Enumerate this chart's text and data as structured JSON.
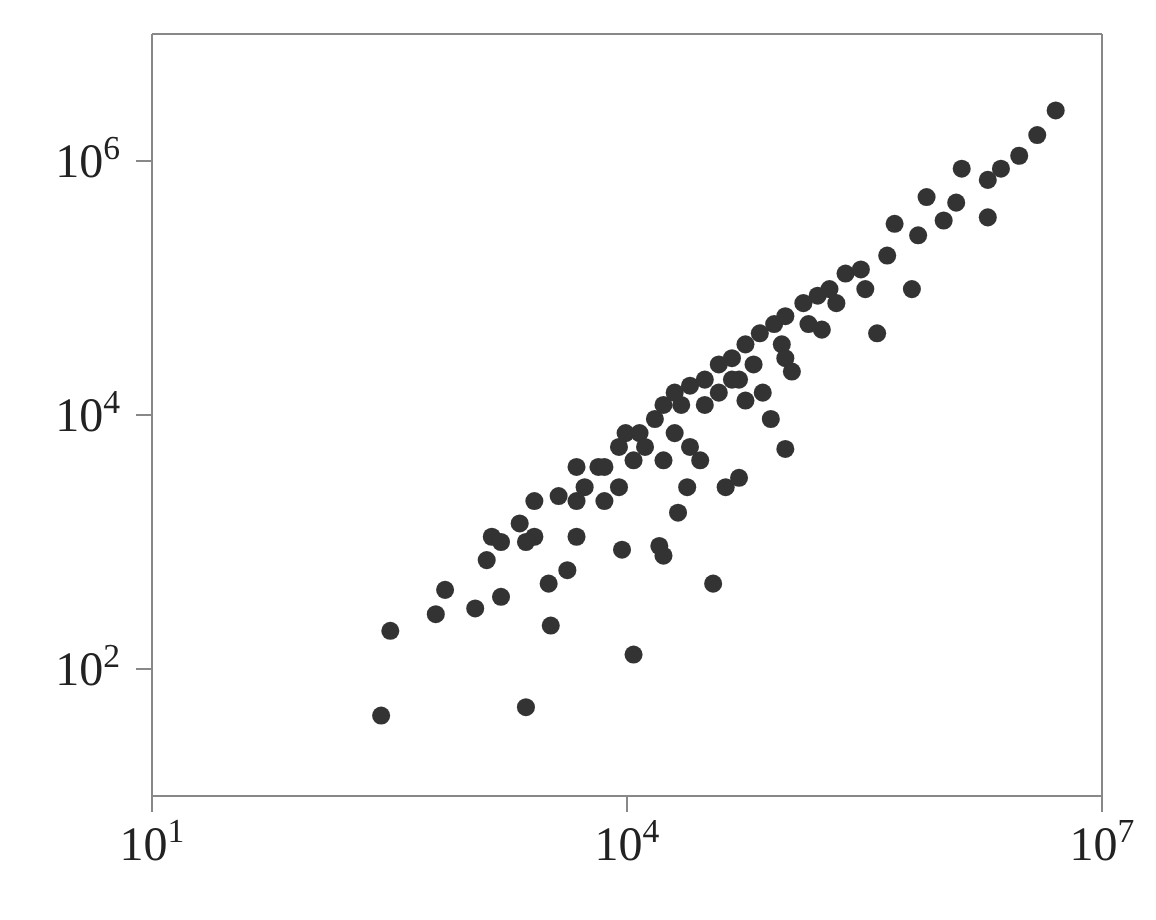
{
  "chart_data": {
    "type": "scatter",
    "log": "xy",
    "marker": "circle",
    "xlim": [
      10,
      10000000
    ],
    "ylim": [
      10,
      10000000
    ],
    "xticks": [
      {
        "value": 10,
        "label": "10$^{1}$"
      },
      {
        "value": 10000,
        "label": "10$^{4}$"
      },
      {
        "value": 10000000,
        "label": "10$^{7}$"
      }
    ],
    "yticks": [
      {
        "value": 100,
        "label": "10$^{2}$"
      },
      {
        "value": 10000,
        "label": "10$^{4}$"
      },
      {
        "value": 1000000,
        "label": "10$^{6}$"
      }
    ],
    "series": [
      {
        "color": "#333333",
        "x": [
          280,
          320,
          2300,
          11000,
          3300,
          35000,
          710,
          1100,
          620,
          1300,
          1600,
          1400,
          2100,
          2600,
          3200,
          4200,
          4800,
          3700,
          5400,
          6600,
          7200,
          9300,
          16000,
          17000,
          21000,
          24000,
          29000,
          42000,
          51000,
          100000,
          81000,
          72000,
          110000,
          8900,
          12000,
          15000,
          17000,
          20000,
          25000,
          31000,
          38000,
          46000,
          56000,
          69000,
          85000,
          100000,
          130000,
          160000,
          190000,
          240000,
          300000,
          380000,
          630000,
          440000,
          490000,
          690000,
          780000,
          1200000,
          1900000,
          1300000,
          1900000,
          2300000,
          3000000,
          3900000,
          5100000,
          2600,
          4800,
          7200,
          11000,
          13000,
          20000,
          31000,
          38000,
          51000,
          63000,
          95000,
          140000,
          210000,
          320000,
          1000000,
          8900,
          17000,
          25000,
          56000,
          100000,
          170000,
          4800,
          9800,
          22000,
          46000,
          1600,
          2300
        ],
        "values": [
          43,
          200,
          50,
          130,
          220,
          470,
          420,
          300,
          270,
          720,
          370,
          1100,
          1400,
          2100,
          470,
          600,
          1100,
          2300,
          2700,
          3900,
          2100,
          870,
          930,
          780,
          1700,
          2700,
          4400,
          2700,
          3200,
          5400,
          9300,
          15000,
          22000,
          5600,
          7200,
          9300,
          12000,
          15000,
          17000,
          19000,
          25000,
          28000,
          36000,
          44000,
          52000,
          60000,
          76000,
          87000,
          98000,
          130000,
          140000,
          44000,
          98000,
          180000,
          320000,
          260000,
          520000,
          470000,
          360000,
          870000,
          710000,
          870000,
          1100000,
          1600000,
          2500000,
          1100,
          2100,
          3900,
          4400,
          5600,
          7200,
          12000,
          15000,
          19000,
          25000,
          36000,
          52000,
          76000,
          98000,
          340000,
          2700,
          4400,
          5600,
          13000,
          28000,
          47000,
          3900,
          7200,
          12000,
          19000,
          1000,
          1000
        ]
      }
    ]
  }
}
